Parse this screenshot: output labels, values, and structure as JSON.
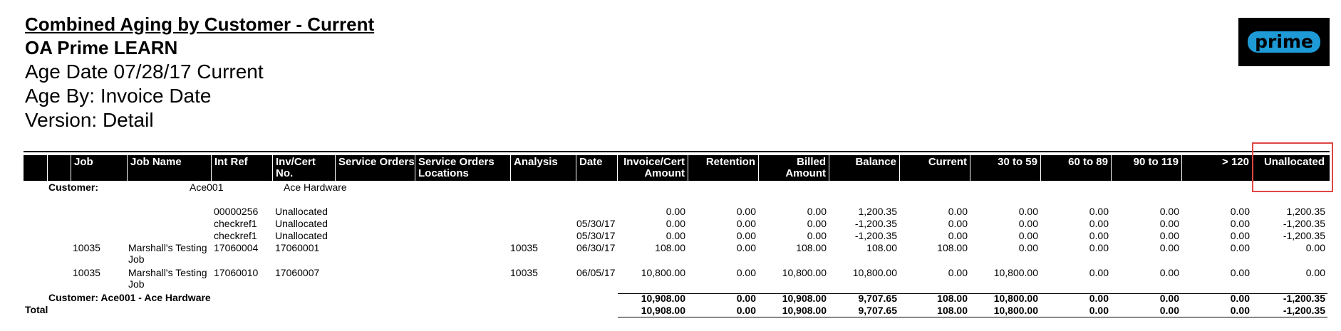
{
  "report": {
    "title": "Combined Aging by Customer - Current",
    "company": "OA Prime LEARN",
    "age_date": "Age Date 07/28/17 Current",
    "age_by": "Age By: Invoice Date",
    "version": "Version: Detail"
  },
  "logo": {
    "text": "prime",
    "color": "#1e9ad6"
  },
  "columns": [
    {
      "key": "job",
      "lines": [
        "Job"
      ]
    },
    {
      "key": "job_name",
      "lines": [
        "Job Name"
      ]
    },
    {
      "key": "int_ref",
      "lines": [
        "Int Ref"
      ]
    },
    {
      "key": "inv_cert_no",
      "lines": [
        "Inv/Cert",
        "No."
      ]
    },
    {
      "key": "service_orders",
      "lines": [
        "Service Orders"
      ]
    },
    {
      "key": "service_orders_locations",
      "lines": [
        "Service Orders",
        "Locations"
      ]
    },
    {
      "key": "analysis",
      "lines": [
        "Analysis"
      ]
    },
    {
      "key": "date",
      "lines": [
        "Date"
      ]
    },
    {
      "key": "invoice_cert_amount",
      "lines": [
        "Invoice/Cert",
        "Amount"
      ]
    },
    {
      "key": "retention",
      "lines": [
        "Retention"
      ]
    },
    {
      "key": "billed_amount",
      "lines": [
        "Billed",
        "Amount"
      ]
    },
    {
      "key": "balance",
      "lines": [
        "Balance"
      ]
    },
    {
      "key": "current",
      "lines": [
        "Current"
      ]
    },
    {
      "key": "d30_59",
      "lines": [
        "30 to 59"
      ]
    },
    {
      "key": "d60_89",
      "lines": [
        "60 to 89"
      ]
    },
    {
      "key": "d90_119",
      "lines": [
        "90 to 119"
      ]
    },
    {
      "key": "d120",
      "lines": [
        "> 120"
      ]
    },
    {
      "key": "unallocated",
      "lines": [
        "Unallocated"
      ]
    }
  ],
  "customer": {
    "label": "Customer:",
    "code": "Ace001",
    "name": "Ace Hardware"
  },
  "rows": [
    {
      "job": "",
      "job_name": "",
      "int_ref": "00000256",
      "inv_cert_no": "Unallocated",
      "analysis": "",
      "date": "",
      "invoice_cert_amount": "0.00",
      "retention": "0.00",
      "billed_amount": "0.00",
      "balance": "1,200.35",
      "current": "0.00",
      "d30_59": "0.00",
      "d60_89": "0.00",
      "d90_119": "0.00",
      "d120": "0.00",
      "unallocated": "1,200.35"
    },
    {
      "job": "",
      "job_name": "",
      "int_ref": "checkref1",
      "inv_cert_no": "Unallocated",
      "analysis": "",
      "date": "05/30/17",
      "invoice_cert_amount": "0.00",
      "retention": "0.00",
      "billed_amount": "0.00",
      "balance": "-1,200.35",
      "current": "0.00",
      "d30_59": "0.00",
      "d60_89": "0.00",
      "d90_119": "0.00",
      "d120": "0.00",
      "unallocated": "-1,200.35"
    },
    {
      "job": "",
      "job_name": "",
      "int_ref": "checkref1",
      "inv_cert_no": "Unallocated",
      "analysis": "",
      "date": "05/30/17",
      "invoice_cert_amount": "0.00",
      "retention": "0.00",
      "billed_amount": "0.00",
      "balance": "-1,200.35",
      "current": "0.00",
      "d30_59": "0.00",
      "d60_89": "0.00",
      "d90_119": "0.00",
      "d120": "0.00",
      "unallocated": "-1,200.35"
    },
    {
      "job": "10035",
      "job_name": "Marshall's Testing Job",
      "int_ref": "17060004",
      "inv_cert_no": "17060001",
      "analysis": "10035",
      "date": "06/30/17",
      "invoice_cert_amount": "108.00",
      "retention": "0.00",
      "billed_amount": "108.00",
      "balance": "108.00",
      "current": "108.00",
      "d30_59": "0.00",
      "d60_89": "0.00",
      "d90_119": "0.00",
      "d120": "0.00",
      "unallocated": "0.00"
    },
    {
      "job": "10035",
      "job_name": "Marshall's Testing Job",
      "int_ref": "17060010",
      "inv_cert_no": "17060007",
      "analysis": "10035",
      "date": "06/05/17",
      "invoice_cert_amount": "10,800.00",
      "retention": "0.00",
      "billed_amount": "10,800.00",
      "balance": "10,800.00",
      "current": "0.00",
      "d30_59": "10,800.00",
      "d60_89": "0.00",
      "d90_119": "0.00",
      "d120": "0.00",
      "unallocated": "0.00"
    }
  ],
  "customer_total": {
    "label": "Customer: Ace001 - Ace Hardware",
    "invoice_cert_amount": "10,908.00",
    "retention": "0.00",
    "billed_amount": "10,908.00",
    "balance": "9,707.65",
    "current": "108.00",
    "d30_59": "10,800.00",
    "d60_89": "0.00",
    "d90_119": "0.00",
    "d120": "0.00",
    "unallocated": "-1,200.35"
  },
  "grand_total": {
    "label": "Total",
    "invoice_cert_amount": "10,908.00",
    "retention": "0.00",
    "billed_amount": "10,908.00",
    "balance": "9,707.65",
    "current": "108.00",
    "d30_59": "10,800.00",
    "d60_89": "0.00",
    "d90_119": "0.00",
    "d120": "0.00",
    "unallocated": "-1,200.35"
  }
}
